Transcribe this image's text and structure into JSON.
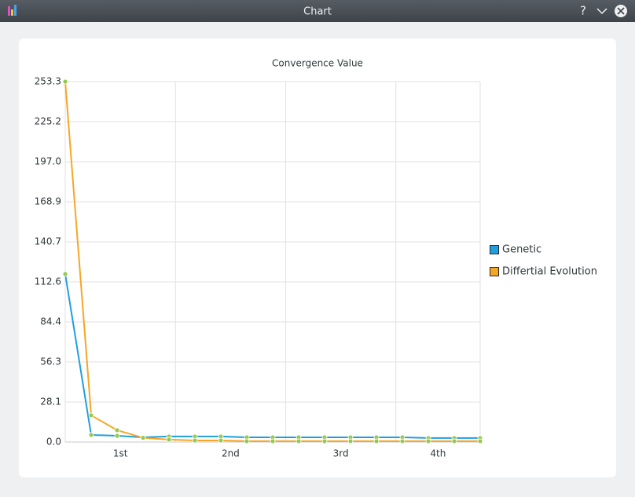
{
  "window": {
    "title": "Chart",
    "help_button": "?"
  },
  "chart_data": {
    "type": "line",
    "title": "Convergence Value",
    "x": [
      0,
      1,
      2,
      3,
      4,
      5,
      6,
      7,
      8,
      9,
      10,
      11,
      12,
      13,
      14,
      15,
      16
    ],
    "xlim": [
      0,
      16
    ],
    "xticks": [
      0,
      4.25,
      8.5,
      12.75,
      16
    ],
    "x_category_labels": [
      "1st",
      "2nd",
      "3rd",
      "4th"
    ],
    "ylim": [
      0,
      253.3
    ],
    "yticks": [
      {
        "value": 0,
        "label": "0.0"
      },
      28.1,
      56.3,
      84.4,
      112.6,
      140.7,
      168.9,
      {
        "value": 197,
        "label": "197.0"
      },
      225.2,
      253.3
    ],
    "grid": true,
    "legend": "right",
    "marker_color": "#95c94f",
    "series": [
      {
        "name": "Genetic",
        "color": "#209fdf",
        "values": [
          118.1,
          5.0,
          4.4,
          3.3,
          3.9,
          3.9,
          3.9,
          3.3,
          3.3,
          3.3,
          3.3,
          3.3,
          3.3,
          3.3,
          2.8,
          2.8,
          2.8
        ]
      },
      {
        "name": "Differtial Evolution",
        "color": "#f6a625",
        "values": [
          253.3,
          18.8,
          8.3,
          3.0,
          1.7,
          1.1,
          1.1,
          0.6,
          0.6,
          0.6,
          0.6,
          0.6,
          0.6,
          0.6,
          0.6,
          0.6,
          0.6
        ]
      }
    ]
  }
}
